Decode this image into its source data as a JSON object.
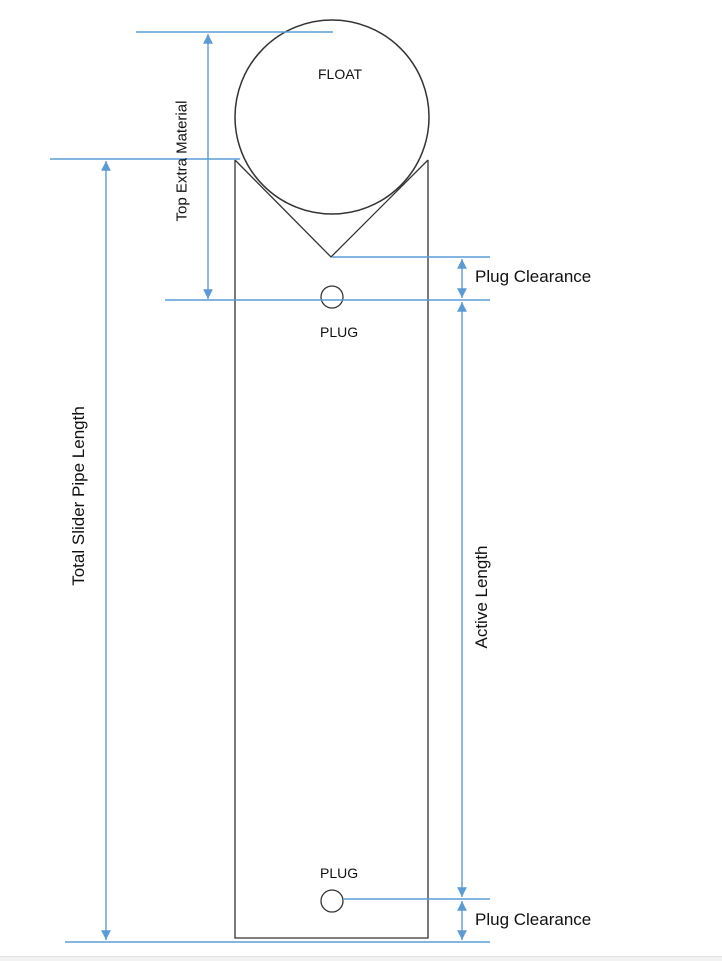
{
  "labels": {
    "float": "FLOAT",
    "plug_top": "PLUG",
    "plug_bottom": "PLUG",
    "top_extra_material": "Top Extra Material",
    "plug_clearance_top": "Plug Clearance",
    "plug_clearance_bottom": "Plug Clearance",
    "total_slider_pipe_length": "Total Slider Pipe Length",
    "active_length": "Active Length"
  },
  "colors": {
    "dimension_line": "#5b9bd5",
    "outline": "#333333",
    "text": "#111111"
  }
}
